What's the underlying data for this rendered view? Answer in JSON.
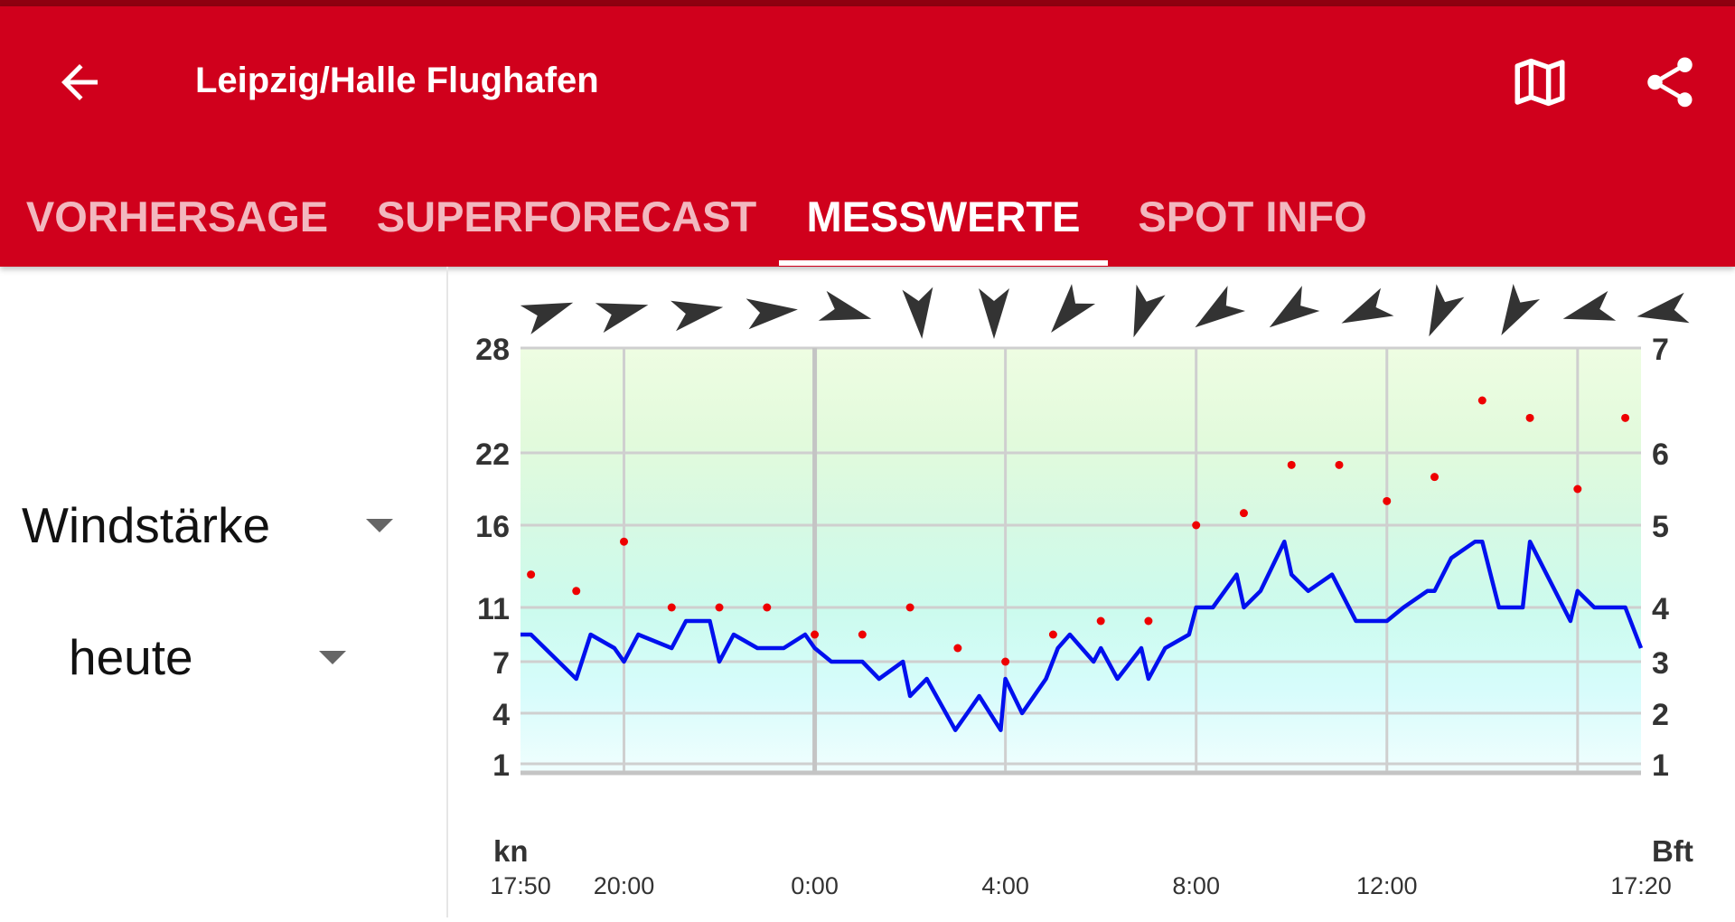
{
  "app_bar": {
    "title": "Leipzig/Halle Flughafen",
    "back_icon": "arrow-left-icon",
    "map_icon": "map-icon",
    "share_icon": "share-icon"
  },
  "tabs": [
    {
      "label": "VORHERSAGE",
      "active": false
    },
    {
      "label": "SUPERFORECAST",
      "active": false
    },
    {
      "label": "MESSWERTE",
      "active": true
    },
    {
      "label": "SPOT INFO",
      "active": false
    }
  ],
  "selectors": {
    "parameter": "Windstärke",
    "day": "heute"
  },
  "colors": {
    "brand_red": "#d0001c",
    "speed_line": "#0010ee",
    "gust_dots": "#ee0000"
  },
  "chart_data": {
    "type": "line",
    "left_axis_unit": "kn",
    "right_axis_unit": "Bft",
    "y_ticks_kn": [
      1,
      4,
      7,
      11,
      16,
      22,
      28
    ],
    "y_ticks_bft": [
      "1",
      "2",
      "3",
      "4",
      "5",
      "6",
      "7"
    ],
    "x_ticks": [
      "17:50",
      "20:00",
      "0:00",
      "4:00",
      "8:00",
      "12:00",
      "17:20"
    ],
    "x_range_hours": [
      -6.17,
      17.33
    ],
    "grid_hours": [
      -4,
      0,
      4,
      8,
      12,
      16
    ],
    "ylim_kn": [
      0,
      28
    ],
    "series": [
      {
        "name": "",
        "style": "line",
        "points": [
          [
            -6.17,
            9
          ],
          [
            -5.95,
            9
          ],
          [
            -5,
            6
          ],
          [
            -4.7,
            9
          ],
          [
            -4.2,
            8
          ],
          [
            -4,
            7
          ],
          [
            -3.7,
            9
          ],
          [
            -3,
            8
          ],
          [
            -2.7,
            10
          ],
          [
            -2.2,
            10
          ],
          [
            -2,
            7
          ],
          [
            -1.7,
            9
          ],
          [
            -1.2,
            8
          ],
          [
            -0.65,
            8
          ],
          [
            -0.2,
            9
          ],
          [
            0,
            8
          ],
          [
            0.35,
            7
          ],
          [
            1.0,
            7
          ],
          [
            1.35,
            6
          ],
          [
            1.85,
            7
          ],
          [
            2.0,
            5
          ],
          [
            2.35,
            6
          ],
          [
            2.95,
            3
          ],
          [
            3.2,
            4
          ],
          [
            3.45,
            5
          ],
          [
            3.9,
            3
          ],
          [
            4.0,
            6
          ],
          [
            4.35,
            4
          ],
          [
            4.85,
            6
          ],
          [
            5.1,
            8
          ],
          [
            5.35,
            9
          ],
          [
            5.85,
            7
          ],
          [
            6.0,
            8
          ],
          [
            6.35,
            6
          ],
          [
            6.85,
            8
          ],
          [
            7.0,
            6
          ],
          [
            7.35,
            8
          ],
          [
            7.85,
            9
          ],
          [
            8.0,
            11
          ],
          [
            8.35,
            11
          ],
          [
            8.85,
            13
          ],
          [
            9.0,
            11
          ],
          [
            9.35,
            12
          ],
          [
            9.85,
            15
          ],
          [
            10.0,
            13
          ],
          [
            10.35,
            12
          ],
          [
            10.85,
            13
          ],
          [
            11.35,
            10
          ],
          [
            12.0,
            10
          ],
          [
            12.35,
            11
          ],
          [
            12.85,
            12
          ],
          [
            13.0,
            12
          ],
          [
            13.35,
            14
          ],
          [
            13.85,
            15
          ],
          [
            14.0,
            15
          ],
          [
            14.35,
            11
          ],
          [
            14.85,
            11
          ],
          [
            15.0,
            15
          ],
          [
            15.85,
            10
          ],
          [
            16.0,
            12
          ],
          [
            16.35,
            11
          ],
          [
            17.0,
            11
          ],
          [
            17.33,
            8
          ]
        ]
      },
      {
        "name": "",
        "style": "dots",
        "points": [
          [
            -5.95,
            13
          ],
          [
            -5,
            12
          ],
          [
            -4,
            15
          ],
          [
            -3,
            11
          ],
          [
            -2,
            11
          ],
          [
            -1,
            11
          ],
          [
            0,
            9
          ],
          [
            1,
            9
          ],
          [
            2,
            11
          ],
          [
            3,
            8
          ],
          [
            4,
            7
          ],
          [
            5,
            9
          ],
          [
            6,
            10
          ],
          [
            7,
            10
          ],
          [
            8,
            16
          ],
          [
            9,
            17
          ],
          [
            10,
            21
          ],
          [
            11,
            21
          ],
          [
            12,
            18
          ],
          [
            13,
            20
          ],
          [
            14,
            25
          ],
          [
            15,
            24
          ],
          [
            16,
            19
          ],
          [
            17,
            24
          ]
        ]
      }
    ],
    "direction_arrows_deg": [
      70,
      75,
      80,
      85,
      105,
      175,
      180,
      220,
      200,
      235,
      235,
      245,
      205,
      210,
      255,
      260
    ]
  }
}
